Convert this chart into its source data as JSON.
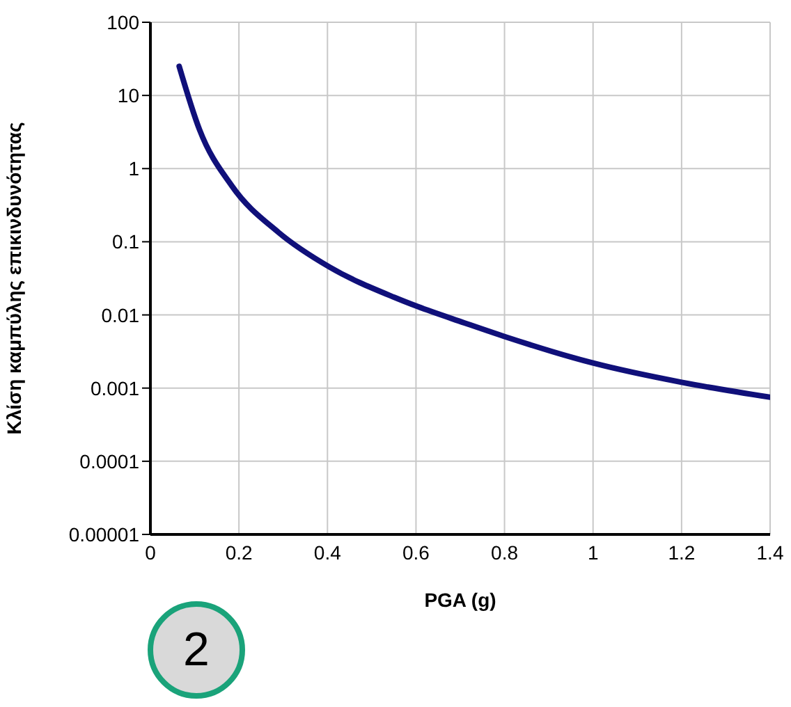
{
  "chart_data": {
    "type": "line",
    "xlabel": "PGA (g)",
    "ylabel": "Κλίση καμπύλης επικινδυνότητας",
    "x": [
      0.065,
      0.111,
      0.184,
      0.289,
      0.405,
      0.551,
      0.604,
      0.709,
      0.803,
      1.0,
      1.2,
      1.4
    ],
    "series": [
      {
        "color": "#10107a",
        "values": [
          25,
          3.4,
          0.58,
          0.135,
          0.045,
          0.0174,
          0.013,
          0.0078,
          0.005,
          0.0022,
          0.0012,
          0.00075
        ]
      }
    ],
    "xlim": [
      0,
      1.4
    ],
    "xticks": [
      0,
      0.2,
      0.4,
      0.6,
      0.8,
      1,
      1.2,
      1.4
    ],
    "ylim": [
      1e-05,
      100
    ],
    "yticks": [
      {
        "value": 1e-05,
        "label": "0.00001"
      },
      0.0001,
      0.001,
      0.01,
      0.1,
      1,
      10,
      100
    ],
    "log": "y",
    "grid": true,
    "marker": "none",
    "line_style": "solid",
    "annotations": [
      "2"
    ]
  }
}
